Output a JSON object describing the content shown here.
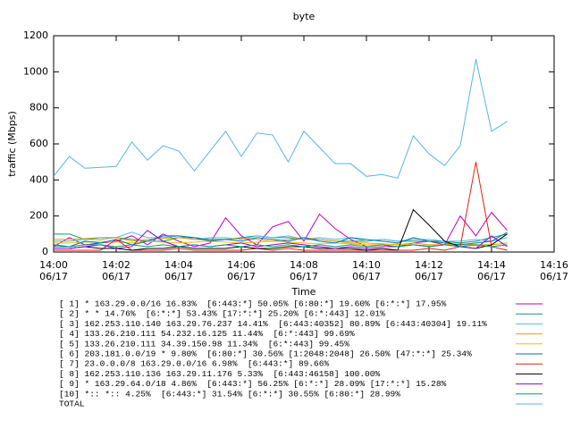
{
  "chart_data": {
    "type": "line",
    "title": "byte",
    "xlabel": "Time",
    "ylabel": "traffic (Mbps)",
    "x": [
      0,
      0.5,
      1,
      1.5,
      2,
      2.5,
      3,
      3.5,
      4,
      4.5,
      5,
      5.5,
      6,
      6.5,
      7,
      7.5,
      8,
      8.5,
      9,
      9.5,
      10,
      10.5,
      11,
      11.5,
      12,
      12.5,
      13,
      13.5,
      14,
      14.5
    ],
    "xlim": [
      0,
      16
    ],
    "xticks": [
      {
        "value": 0,
        "label": "14:00\n06/17"
      },
      {
        "value": 2,
        "label": "14:02\n06/17"
      },
      {
        "value": 4,
        "label": "14:04\n06/17"
      },
      {
        "value": 6,
        "label": "14:06\n06/17"
      },
      {
        "value": 8,
        "label": "14:08\n06/17"
      },
      {
        "value": 10,
        "label": "14:10\n06/17"
      },
      {
        "value": 12,
        "label": "14:12\n06/17"
      },
      {
        "value": 14,
        "label": "14:14\n06/17"
      },
      {
        "value": 16,
        "label": "14:16\n06/17"
      }
    ],
    "ylim": [
      0,
      1200
    ],
    "yticks": [
      0,
      200,
      400,
      600,
      800,
      1000,
      1200
    ],
    "series": [
      {
        "name": "[ 1] * 163.29.0.0/16 16.83%  [6:443:*] 50.05% [6:80:*] 19.60% [6:*:*] 17.95%",
        "color": "#c000c0",
        "values": [
          30,
          80,
          40,
          50,
          60,
          90,
          40,
          100,
          60,
          30,
          50,
          190,
          90,
          40,
          140,
          170,
          60,
          210,
          130,
          70,
          30,
          40,
          30,
          50,
          60,
          40,
          200,
          90,
          220,
          120
        ]
      },
      {
        "name": "[ 2] * * 14.76%  [6:*:*] 53.43% [17:*:*] 25.20% [6:*:443] 12.01%",
        "color": "#009e73",
        "values": [
          100,
          100,
          70,
          80,
          80,
          70,
          60,
          60,
          80,
          80,
          70,
          70,
          80,
          90,
          80,
          80,
          70,
          70,
          60,
          60,
          60,
          70,
          60,
          60,
          60,
          60,
          50,
          60,
          80,
          100
        ]
      },
      {
        "name": "[ 3] 162.253.110.140 163.29.76.237 14.41%  [6:443:40352] 80.89% [6:443:40304] 19.11%",
        "color": "#56b4e9",
        "values": [
          60,
          60,
          70,
          70,
          80,
          110,
          80,
          80,
          90,
          70,
          80,
          80,
          70,
          90,
          80,
          90,
          70,
          80,
          70,
          80,
          60,
          70,
          60,
          70,
          70,
          60,
          60,
          70,
          60,
          80
        ]
      },
      {
        "name": "[ 4] 133.26.210.111 54.232.16.125 11.44%  [6:*:443] 99.69%",
        "color": "#e69f00",
        "values": [
          70,
          70,
          75,
          80,
          80,
          60,
          70,
          75,
          80,
          70,
          65,
          70,
          75,
          70,
          60,
          70,
          80,
          70,
          60,
          50,
          50,
          45,
          40,
          50,
          40,
          40,
          45,
          40,
          40,
          50
        ]
      },
      {
        "name": "[ 5] 133.26.210.111 34.39.150.98 11.34%  [6:*:443] 99.45%",
        "color": "#f0c000",
        "values": [
          50,
          50,
          55,
          60,
          55,
          50,
          60,
          55,
          50,
          55,
          60,
          55,
          50,
          55,
          60,
          55,
          50,
          45,
          50,
          45,
          40,
          40,
          45,
          40,
          35,
          40,
          40,
          35,
          30,
          40
        ]
      },
      {
        "name": "[ 6] 203.181.0.0/19 * 9.80%  [6:80:*] 30.56% [1:2048:2048] 26.50% [47:*:*] 25.34%",
        "color": "#0072b2",
        "values": [
          40,
          30,
          60,
          50,
          70,
          40,
          60,
          90,
          90,
          80,
          60,
          70,
          60,
          80,
          70,
          60,
          80,
          60,
          50,
          80,
          70,
          60,
          50,
          80,
          60,
          50,
          40,
          50,
          60,
          110
        ]
      },
      {
        "name": "[ 7] 23.0.0.0/8 163.29.0.0/16 6.98%  [6:443:*] 89.66%",
        "color": "#e51e10",
        "values": [
          10,
          10,
          10,
          10,
          70,
          10,
          10,
          10,
          20,
          10,
          10,
          10,
          10,
          20,
          10,
          20,
          10,
          10,
          10,
          10,
          10,
          10,
          10,
          10,
          20,
          10,
          30,
          500,
          30,
          10
        ]
      },
      {
        "name": "[ 8] 162.253.110.136 163.29.11.176 5.33%  [6:443:46158] 100.00%",
        "color": "#000000",
        "values": [
          20,
          20,
          30,
          20,
          20,
          10,
          20,
          20,
          30,
          20,
          20,
          20,
          30,
          20,
          20,
          30,
          30,
          20,
          20,
          20,
          10,
          20,
          10,
          235,
          150,
          60,
          30,
          20,
          40,
          100
        ]
      },
      {
        "name": "[ 9] * 163.29.64.0/18 4.86%  [6:443:*] 56.25% [6:*:*] 28.09% [17:*:*] 15.28%",
        "color": "#9400d3",
        "values": [
          20,
          20,
          30,
          40,
          20,
          30,
          120,
          60,
          30,
          40,
          30,
          40,
          50,
          30,
          40,
          50,
          40,
          30,
          20,
          30,
          20,
          30,
          30,
          40,
          30,
          40,
          30,
          20,
          90,
          30
        ]
      },
      {
        "name": "[10] *:: *:: 4.25%  [6:443:*] 31.54% [6:*:*] 30.55% [6:80:*] 28.99%",
        "color": "#009e73",
        "values": [
          30,
          30,
          40,
          40,
          30,
          40,
          30,
          40,
          30,
          40,
          30,
          40,
          30,
          40,
          30,
          40,
          30,
          40,
          30,
          40,
          30,
          40,
          30,
          40,
          30,
          40,
          30,
          40,
          30,
          40
        ]
      },
      {
        "name": "TOTAL",
        "color": "#56b4e9",
        "values": [
          420,
          530,
          465,
          470,
          475,
          610,
          510,
          590,
          560,
          450,
          560,
          670,
          530,
          660,
          650,
          500,
          670,
          580,
          490,
          490,
          420,
          430,
          410,
          645,
          545,
          480,
          590,
          1070,
          670,
          725
        ]
      }
    ]
  }
}
